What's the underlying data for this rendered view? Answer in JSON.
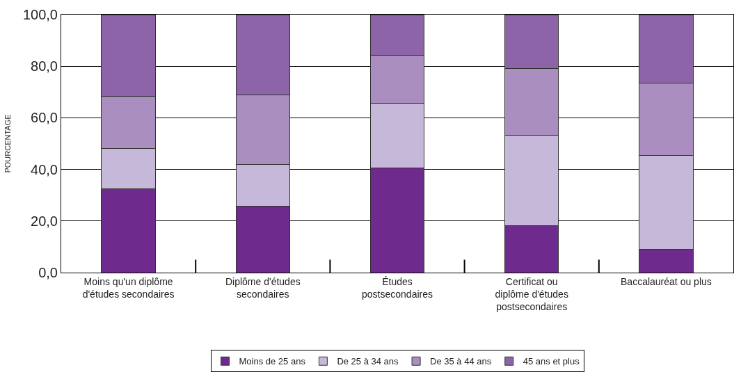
{
  "chart_data": {
    "type": "bar",
    "stacked": true,
    "ylabel": "POURCENTAGE",
    "categories": [
      "Moins qu'un diplôme d'études secondaires",
      "Diplôme d'études secondaires",
      "Études postsecondaires",
      "Certificat ou diplôme d'études postsecondaires",
      "Baccalauréat ou plus"
    ],
    "series": [
      {
        "name": "Moins de 25 ans",
        "color": "#6e2a8c",
        "values": [
          32.6,
          25.7,
          40.7,
          18.3,
          8.9
        ]
      },
      {
        "name": "De 25 à 34 ans",
        "color": "#c5b8d9",
        "values": [
          15.5,
          16.3,
          24.9,
          34.9,
          36.4
        ]
      },
      {
        "name": "De 35 à 44 ans",
        "color": "#a98ebf",
        "values": [
          20.1,
          27.0,
          18.6,
          25.9,
          28.2
        ]
      },
      {
        "name": "45 ans et plus",
        "color": "#8e64a8",
        "values": [
          31.8,
          31.0,
          15.8,
          20.9,
          26.5
        ]
      }
    ],
    "ylim": [
      0,
      100
    ],
    "yticks": [
      {
        "value": 0,
        "label": "0,0"
      },
      {
        "value": 20,
        "label": "20,0"
      },
      {
        "value": 40,
        "label": "40,0"
      },
      {
        "value": 60,
        "label": "60,0"
      },
      {
        "value": 80,
        "label": "80,0"
      },
      {
        "value": 100,
        "label": "100,0"
      }
    ],
    "grid": "y",
    "legend": "bottom"
  }
}
